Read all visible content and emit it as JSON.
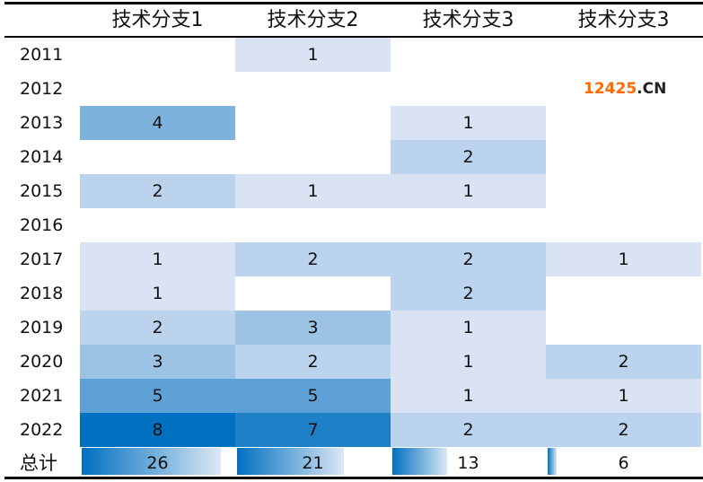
{
  "chart_data": {
    "type": "heatmap",
    "columns": [
      "技术分支1",
      "技术分支2",
      "技术分支3",
      "技术分支3"
    ],
    "rows": [
      "2011",
      "2012",
      "2013",
      "2014",
      "2015",
      "2016",
      "2017",
      "2018",
      "2019",
      "2020",
      "2021",
      "2022"
    ],
    "values": [
      [
        null,
        1,
        null,
        null
      ],
      [
        null,
        null,
        null,
        null
      ],
      [
        4,
        null,
        1,
        null
      ],
      [
        null,
        null,
        2,
        null
      ],
      [
        2,
        1,
        1,
        null
      ],
      [
        null,
        null,
        null,
        null
      ],
      [
        1,
        2,
        2,
        1
      ],
      [
        1,
        null,
        2,
        null
      ],
      [
        2,
        3,
        1,
        null
      ],
      [
        3,
        2,
        1,
        2
      ],
      [
        5,
        5,
        1,
        1
      ],
      [
        8,
        7,
        2,
        2
      ]
    ],
    "total_label": "总计",
    "totals": [
      26,
      21,
      13,
      6
    ],
    "color_scale": {
      "low": "#dae3f3",
      "high": "#0070c0"
    },
    "databar_color": "#0070c0"
  },
  "watermark": {
    "text_a": "12425",
    "text_b": ".CN",
    "color_a": "#ff6a00",
    "color_b": "#222222"
  }
}
